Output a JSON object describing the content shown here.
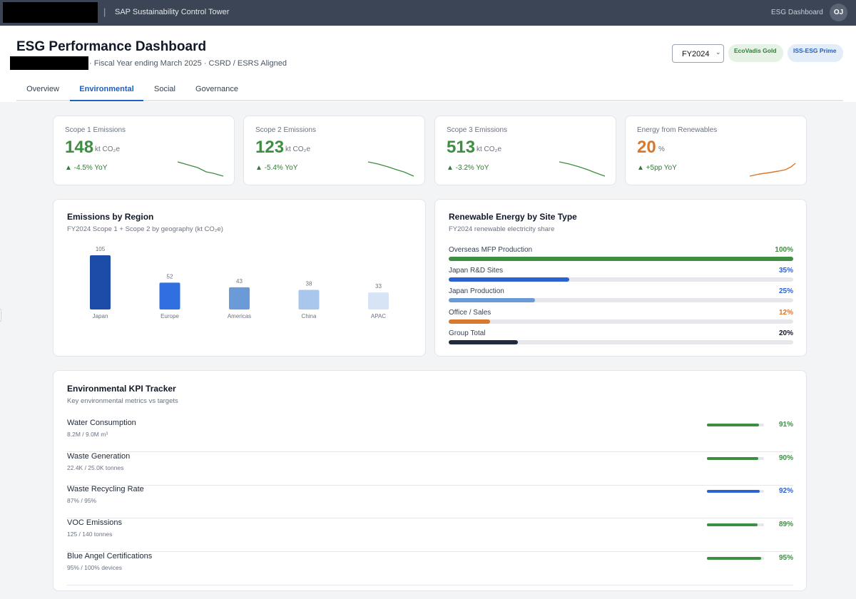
{
  "topbar": {
    "separator": "|",
    "app_title": "SAP Sustainability Control Tower",
    "nav_link": "ESG Dashboard",
    "avatar_initials": "OJ"
  },
  "header": {
    "title": "ESG Performance Dashboard",
    "subtitle": "· Fiscal Year ending March 2025 · CSRD / ESRS Aligned",
    "year_select": "FY2024",
    "badges": [
      "EcoVadis Gold",
      "ISS-ESG Prime"
    ]
  },
  "tabs": [
    {
      "label": "Overview",
      "active": false
    },
    {
      "label": "Environmental",
      "active": true
    },
    {
      "label": "Social",
      "active": false
    },
    {
      "label": "Governance",
      "active": false
    }
  ],
  "kpis": [
    {
      "label": "Scope 1 Emissions",
      "value": "148",
      "unit": "kt CO₂e",
      "delta": "▲ -4.5% YoY",
      "color": "#3e8e41",
      "trend": "down"
    },
    {
      "label": "Scope 2 Emissions",
      "value": "123",
      "unit": "kt CO₂e",
      "delta": "▲ -5.4% YoY",
      "color": "#3e8e41",
      "trend": "down"
    },
    {
      "label": "Scope 3 Emissions",
      "value": "513",
      "unit": "kt CO₂e",
      "delta": "▲ -3.2% YoY",
      "color": "#3e8e41",
      "trend": "down"
    },
    {
      "label": "Energy from Renewables",
      "value": "20",
      "unit": "%",
      "delta": "▲ +5pp YoY",
      "color": "#d9772b",
      "trend": "up"
    }
  ],
  "region_chart": {
    "title": "Emissions by Region",
    "subtitle": "FY2024 Scope 1 + Scope 2 by geography (kt CO₂e)"
  },
  "chart_data": {
    "type": "bar",
    "categories": [
      "Japan",
      "Europe",
      "Americas",
      "China",
      "APAC"
    ],
    "values": [
      105,
      52,
      43,
      38,
      33
    ],
    "colors": [
      "#1d4ca8",
      "#2f6fdf",
      "#6a9bd6",
      "#a9c6ec",
      "#d6e4f6"
    ],
    "title": "",
    "xlabel": "",
    "ylabel": "",
    "ylim": [
      0,
      105
    ],
    "grid": false
  },
  "renewable": {
    "title": "Renewable Energy by Site Type",
    "subtitle": "FY2024 renewable electricity share",
    "rows": [
      {
        "label": "Overseas MFP Production",
        "pct_text": "100%",
        "value": 100,
        "color": "#3e8e41"
      },
      {
        "label": "Japan R&D Sites",
        "pct_text": "35%",
        "value": 35,
        "color": "#2a62d4"
      },
      {
        "label": "Japan Production",
        "pct_text": "25%",
        "value": 25,
        "color": "#6a9bd6"
      },
      {
        "label": "Office / Sales",
        "pct_text": "12%",
        "value": 12,
        "color": "#d9772b"
      },
      {
        "label": "Group Total",
        "pct_text": "20%",
        "value": 20,
        "color": "#1f2a3c"
      }
    ]
  },
  "tracker": {
    "title": "Environmental KPI Tracker",
    "subtitle": "Key environmental metrics vs targets",
    "rows": [
      {
        "name": "Water Consumption",
        "detail": "8.2M / 9.0M m³",
        "pct_text": "91%",
        "value": 91,
        "color": "#3e8e41"
      },
      {
        "name": "Waste Generation",
        "detail": "22.4K / 25.0K tonnes",
        "pct_text": "90%",
        "value": 90,
        "color": "#3e8e41"
      },
      {
        "name": "Waste Recycling Rate",
        "detail": "87% / 95%",
        "pct_text": "92%",
        "value": 92,
        "color": "#2a62d4"
      },
      {
        "name": "VOC Emissions",
        "detail": "125 / 140 tonnes",
        "pct_text": "89%",
        "value": 89,
        "color": "#3e8e41"
      },
      {
        "name": "Blue Angel Certifications",
        "detail": "95% / 100% devices",
        "pct_text": "95%",
        "value": 95,
        "color": "#3e8e41"
      }
    ]
  }
}
